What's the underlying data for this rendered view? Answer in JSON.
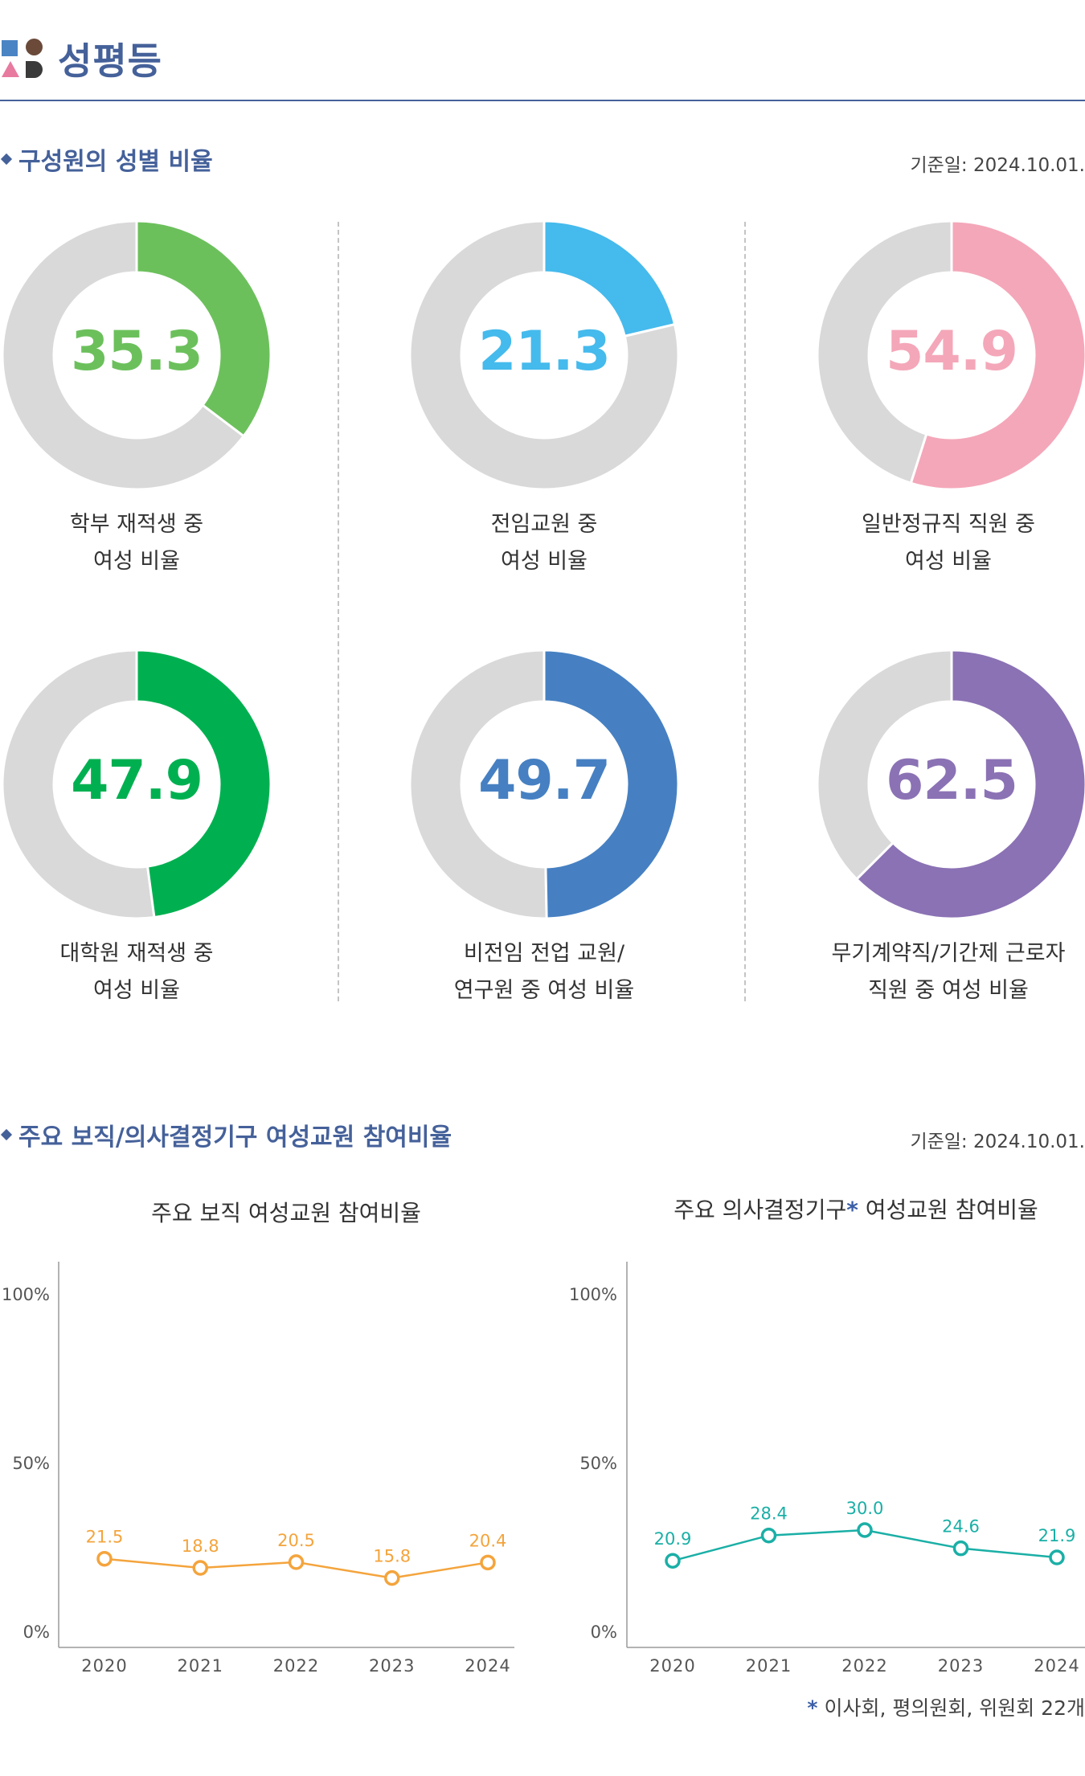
{
  "header": {
    "title": "성평등"
  },
  "section1": {
    "title": "구성원의 성별 비율",
    "ref_date": "기준일: 2024.10.01."
  },
  "donuts": [
    {
      "value": "35.3",
      "pct": 35.3,
      "color": "#6cc05c",
      "label1": "학부 재적생 중",
      "label2": "여성 비율"
    },
    {
      "value": "21.3",
      "pct": 21.3,
      "color": "#45baec",
      "label1": "전임교원 중",
      "label2": "여성 비율"
    },
    {
      "value": "54.9",
      "pct": 54.9,
      "color": "#f4a7b9",
      "label1": "일반정규직 직원 중",
      "label2": "여성 비율"
    },
    {
      "value": "47.9",
      "pct": 47.9,
      "color": "#00b050",
      "label1": "대학원 재적생 중",
      "label2": "여성 비율"
    },
    {
      "value": "49.7",
      "pct": 49.7,
      "color": "#4680c2",
      "label1": "비전임 전업 교원/",
      "label2": "연구원 중 여성 비율"
    },
    {
      "value": "62.5",
      "pct": 62.5,
      "color": "#8b72b4",
      "label1": "무기계약직/기간제 근로자",
      "label2": "직원 중 여성 비율"
    }
  ],
  "donut_track_color": "#d9d9d9",
  "section2": {
    "title": "주요 보직/의사결정기구 여성교원 참여비율",
    "ref_date": "기준일: 2024.10.01."
  },
  "chart_data": [
    {
      "type": "line",
      "title": "주요 보직 여성교원 참여비율",
      "x": [
        "2020",
        "2021",
        "2022",
        "2023",
        "2024"
      ],
      "series": [
        {
          "values": [
            21.5,
            18.8,
            20.5,
            15.8,
            20.4
          ]
        }
      ],
      "color": "#f4a43c",
      "ylim": [
        0,
        100
      ],
      "yticks": [
        "100%",
        "50%",
        "0%"
      ],
      "ytick_values": [
        100,
        50,
        0
      ],
      "grid": false
    },
    {
      "type": "line",
      "title_main": "주요 의사결정기구",
      "title_star": "*",
      "title_rest": " 여성교원 참여비율",
      "x": [
        "2020",
        "2021",
        "2022",
        "2023",
        "2024"
      ],
      "series": [
        {
          "values": [
            20.9,
            28.4,
            30.0,
            24.6,
            21.9
          ]
        }
      ],
      "color": "#1aafa6",
      "ylim": [
        0,
        100
      ],
      "yticks": [
        "100%",
        "50%",
        "0%"
      ],
      "ytick_values": [
        100,
        50,
        0
      ],
      "grid": false
    }
  ],
  "footnote": {
    "star": "*",
    "text": " 이사회, 평의원회, 위원회 22개"
  }
}
